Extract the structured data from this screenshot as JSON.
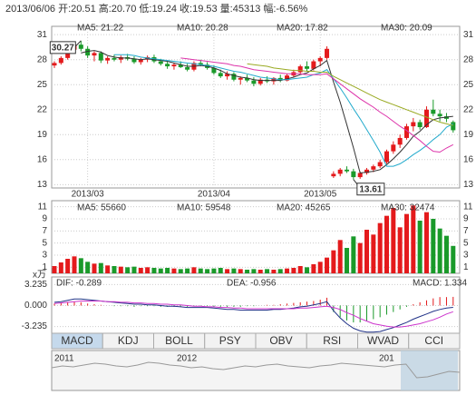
{
  "header": "2013/06/06 开:20.51 高:20.70 低:19.24 收:19.53 量:45313 幅:-6.56%",
  "chart_data": [
    {
      "type": "candlestick",
      "categories": [
        null,
        null,
        null,
        null,
        null,
        "2013/03",
        null,
        null,
        null,
        null,
        null,
        null,
        null,
        null,
        null,
        null,
        null,
        null,
        null,
        null,
        null,
        null,
        null,
        null,
        "2013/04",
        null,
        null,
        null,
        null,
        null,
        null,
        null,
        null,
        null,
        null,
        null,
        null,
        null,
        null,
        null,
        "2013/05",
        null,
        null,
        null,
        null,
        null,
        null,
        null,
        null,
        null,
        null,
        null,
        null,
        null,
        null,
        null,
        null,
        null,
        null,
        null,
        null
      ],
      "open": [
        27.3,
        27.6,
        28.2,
        29.2,
        29.8,
        29.3,
        28.5,
        28.8,
        27.9,
        28.2,
        28.0,
        28.3,
        28.1,
        27.7,
        28.0,
        28.3,
        27.8,
        27.5,
        27.2,
        27.4,
        27.1,
        26.8,
        27.6,
        27.4,
        27.0,
        26.4,
        26.0,
        26.3,
        25.6,
        25.8,
        25.5,
        25.1,
        25.6,
        25.4,
        25.8,
        25.5,
        26.1,
        26.5,
        27.2,
        26.9,
        27.8,
        28.2,
        14.0,
        14.3,
        14.8,
        14.6,
        13.9,
        14.4,
        14.8,
        15.2,
        15.7,
        17.0,
        17.8,
        18.6,
        20.0,
        20.5,
        19.9,
        22.0,
        21.5,
        21.2,
        20.51
      ],
      "high": [
        27.8,
        28.4,
        29.5,
        30.0,
        30.27,
        29.6,
        29.0,
        29.0,
        28.4,
        28.6,
        28.5,
        28.7,
        28.4,
        28.2,
        28.5,
        28.6,
        28.1,
        27.9,
        27.6,
        27.8,
        27.5,
        27.8,
        28.0,
        27.7,
        27.3,
        26.8,
        26.6,
        26.5,
        26.0,
        26.2,
        25.9,
        25.8,
        26.0,
        25.9,
        26.2,
        26.3,
        26.8,
        27.4,
        27.8,
        28.0,
        28.4,
        29.6,
        14.6,
        15.0,
        15.2,
        14.9,
        14.6,
        15.0,
        15.4,
        16.0,
        17.2,
        18.2,
        19.0,
        20.3,
        21.0,
        20.8,
        22.4,
        23.2,
        22.0,
        21.6,
        20.7
      ],
      "low": [
        27.0,
        27.4,
        28.0,
        28.8,
        29.0,
        28.2,
        27.8,
        27.6,
        27.5,
        27.8,
        27.6,
        27.9,
        27.5,
        27.4,
        27.7,
        27.6,
        27.3,
        26.9,
        26.8,
        27.0,
        26.6,
        26.6,
        27.2,
        26.8,
        26.2,
        25.8,
        25.6,
        25.4,
        25.0,
        25.3,
        24.8,
        24.9,
        25.2,
        25.0,
        25.3,
        25.4,
        25.9,
        26.3,
        26.6,
        26.7,
        27.2,
        28.0,
        13.8,
        14.0,
        14.4,
        13.61,
        13.7,
        14.2,
        14.5,
        15.0,
        15.5,
        16.7,
        17.4,
        18.4,
        19.4,
        19.6,
        19.8,
        21.2,
        20.6,
        20.5,
        19.24
      ],
      "close": [
        27.6,
        28.2,
        29.2,
        29.8,
        29.3,
        28.5,
        28.8,
        27.9,
        28.2,
        28.0,
        28.3,
        28.1,
        27.7,
        28.0,
        28.3,
        27.8,
        27.5,
        27.2,
        27.4,
        27.1,
        26.8,
        27.6,
        27.4,
        27.0,
        26.4,
        26.0,
        26.3,
        25.6,
        25.8,
        25.5,
        25.1,
        25.6,
        25.4,
        25.8,
        25.5,
        26.1,
        26.5,
        27.2,
        26.9,
        27.8,
        28.2,
        29.3,
        14.3,
        14.8,
        14.6,
        13.9,
        14.4,
        14.8,
        15.2,
        15.7,
        17.0,
        17.8,
        18.6,
        20.0,
        20.5,
        19.9,
        22.0,
        21.5,
        21.2,
        20.9,
        19.53
      ],
      "up_color": "#e41a1c",
      "down_color": "#1a9a2a",
      "series": [
        {
          "name": "MA5: 21.22",
          "color": "#333333",
          "values": [
            null,
            null,
            null,
            null,
            28.8,
            29.0,
            29.1,
            28.9,
            28.5,
            28.3,
            28.2,
            28.2,
            28.1,
            28.0,
            28.1,
            28.0,
            27.9,
            27.8,
            27.6,
            27.4,
            27.2,
            27.2,
            27.3,
            27.2,
            27.0,
            26.7,
            26.3,
            26.1,
            25.9,
            25.8,
            25.6,
            25.5,
            25.5,
            25.5,
            25.5,
            25.7,
            25.9,
            26.2,
            26.4,
            26.9,
            27.3,
            27.9,
            25.3,
            22.9,
            20.2,
            17.4,
            14.4,
            14.5,
            14.6,
            14.8,
            15.4,
            16.1,
            16.9,
            17.8,
            18.8,
            19.4,
            20.2,
            20.8,
            21.0,
            21.1,
            21.2
          ]
        },
        {
          "name": "MA10: 20.28",
          "color": "#22aacc",
          "values": [
            null,
            null,
            null,
            null,
            null,
            null,
            null,
            null,
            null,
            28.6,
            28.6,
            28.6,
            28.5,
            28.3,
            28.2,
            28.1,
            28.0,
            27.9,
            27.8,
            27.7,
            27.6,
            27.5,
            27.4,
            27.3,
            27.2,
            27.0,
            26.8,
            26.6,
            26.5,
            26.3,
            26.1,
            25.9,
            25.8,
            25.7,
            25.6,
            25.6,
            25.7,
            25.8,
            25.9,
            26.2,
            26.4,
            26.8,
            25.7,
            24.6,
            23.4,
            22.1,
            20.9,
            19.6,
            18.3,
            16.9,
            15.2,
            15.2,
            15.5,
            16.0,
            16.6,
            17.1,
            17.7,
            18.4,
            19.0,
            19.9,
            20.3
          ]
        },
        {
          "name": "MA20: 17.82",
          "color": "#dd33aa",
          "values": [
            null,
            null,
            null,
            null,
            null,
            null,
            null,
            null,
            null,
            null,
            null,
            null,
            null,
            null,
            null,
            null,
            null,
            null,
            null,
            28.2,
            28.1,
            28.0,
            27.9,
            27.8,
            27.7,
            27.6,
            27.5,
            27.3,
            27.2,
            27.0,
            26.8,
            26.7,
            26.6,
            26.5,
            26.4,
            26.3,
            26.3,
            26.3,
            26.2,
            26.2,
            26.2,
            26.3,
            25.7,
            25.1,
            24.5,
            23.9,
            23.3,
            22.8,
            22.3,
            21.7,
            21.2,
            20.6,
            20.0,
            19.5,
            18.9,
            18.3,
            17.6,
            17.0,
            16.9,
            17.4,
            17.8
          ]
        },
        {
          "name": "MA30: 20.09",
          "color": "#99aa22",
          "values": [
            null,
            null,
            null,
            null,
            null,
            null,
            null,
            null,
            null,
            null,
            null,
            null,
            null,
            null,
            null,
            null,
            null,
            null,
            null,
            null,
            null,
            null,
            null,
            null,
            null,
            null,
            null,
            null,
            null,
            27.5,
            27.4,
            27.3,
            27.2,
            27.0,
            26.9,
            26.8,
            26.7,
            26.7,
            26.6,
            26.6,
            26.5,
            26.5,
            26.0,
            25.6,
            25.2,
            24.8,
            24.4,
            24.0,
            23.6,
            23.2,
            22.9,
            22.6,
            22.3,
            22.0,
            21.7,
            21.4,
            21.1,
            20.8,
            20.5,
            20.3,
            20.1
          ]
        }
      ],
      "max_label": "30.27",
      "min_label": "13.61",
      "ylim": [
        12.6,
        32
      ],
      "yticks": [
        31,
        28,
        25,
        22,
        19,
        16,
        13
      ],
      "grid": true
    },
    {
      "type": "bar",
      "unit_label": "x万",
      "values": [
        1.2,
        1.8,
        2.4,
        2.8,
        2.5,
        1.9,
        1.6,
        1.7,
        1.3,
        1.2,
        1.1,
        1.0,
        1.1,
        0.9,
        1.0,
        0.9,
        0.8,
        0.9,
        0.8,
        0.7,
        0.8,
        1.0,
        0.8,
        0.7,
        0.8,
        0.9,
        0.7,
        0.8,
        0.7,
        0.6,
        0.7,
        0.6,
        0.7,
        0.6,
        0.7,
        0.8,
        0.9,
        1.2,
        1.0,
        1.5,
        1.9,
        2.6,
        3.8,
        5.5,
        4.2,
        6.1,
        5.0,
        7.2,
        6.4,
        8.3,
        9.5,
        10.8,
        7.6,
        9.8,
        11.2,
        8.7,
        10.1,
        9.0,
        7.4,
        6.2,
        4.53
      ],
      "legend": [
        {
          "text": "MA5: 55660",
          "color": "#333333"
        },
        {
          "text": "MA10: 59548",
          "color": "#22aacc"
        },
        {
          "text": "MA20: 45265",
          "color": "#dd33aa"
        },
        {
          "text": "MA30: 32474",
          "color": "#99aa22"
        }
      ],
      "ylim": [
        0,
        12
      ],
      "yticks": [
        1,
        3,
        5,
        7,
        9,
        11
      ],
      "grid": true
    },
    {
      "type": "macd",
      "series": [
        {
          "name": "DIF: -0.289",
          "color": "#223388",
          "values": [
            0.5,
            0.6,
            0.8,
            1.0,
            1.0,
            0.9,
            0.8,
            0.7,
            0.6,
            0.5,
            0.4,
            0.3,
            0.2,
            0.2,
            0.1,
            0.1,
            0.0,
            -0.1,
            -0.1,
            -0.2,
            -0.3,
            -0.3,
            -0.3,
            -0.3,
            -0.4,
            -0.5,
            -0.6,
            -0.6,
            -0.7,
            -0.7,
            -0.7,
            -0.7,
            -0.7,
            -0.6,
            -0.6,
            -0.5,
            -0.4,
            -0.2,
            -0.1,
            0.1,
            0.3,
            0.6,
            -0.8,
            -1.9,
            -2.8,
            -3.5,
            -3.9,
            -4.1,
            -4.1,
            -4.0,
            -3.7,
            -3.4,
            -3.0,
            -2.6,
            -2.1,
            -1.7,
            -1.3,
            -0.9,
            -0.6,
            -0.4,
            -0.289
          ]
        },
        {
          "name": "DEA: -0.956",
          "color": "#cc33cc",
          "values": [
            0.3,
            0.4,
            0.5,
            0.6,
            0.7,
            0.7,
            0.7,
            0.7,
            0.6,
            0.6,
            0.5,
            0.5,
            0.4,
            0.4,
            0.3,
            0.3,
            0.2,
            0.2,
            0.1,
            0.1,
            0.0,
            -0.1,
            -0.1,
            -0.2,
            -0.2,
            -0.3,
            -0.3,
            -0.4,
            -0.4,
            -0.5,
            -0.5,
            -0.5,
            -0.5,
            -0.5,
            -0.5,
            -0.5,
            -0.5,
            -0.4,
            -0.4,
            -0.3,
            -0.2,
            -0.1,
            -0.3,
            -0.6,
            -1.1,
            -1.5,
            -2.0,
            -2.4,
            -2.8,
            -3.0,
            -3.2,
            -3.3,
            -3.3,
            -3.2,
            -3.0,
            -2.8,
            -2.5,
            -2.2,
            -1.8,
            -1.3,
            -0.956
          ]
        },
        {
          "name": "MACD: 1.334",
          "color": "#e41a1c",
          "negative_color": "#1a9a2a",
          "values": [
            0.3,
            0.4,
            0.5,
            0.6,
            0.5,
            0.3,
            0.2,
            0.1,
            0.0,
            -0.1,
            -0.1,
            -0.1,
            -0.2,
            -0.1,
            -0.1,
            -0.1,
            -0.2,
            -0.2,
            -0.2,
            -0.2,
            -0.2,
            -0.1,
            -0.1,
            -0.1,
            -0.2,
            -0.2,
            -0.2,
            -0.2,
            -0.2,
            -0.1,
            -0.1,
            0.0,
            0.1,
            0.1,
            0.2,
            0.3,
            0.4,
            0.5,
            0.6,
            0.7,
            0.9,
            1.2,
            -1.0,
            -1.8,
            -2.3,
            -2.6,
            -2.6,
            -2.4,
            -2.1,
            -1.8,
            -1.4,
            -1.0,
            -0.6,
            -0.2,
            0.2,
            0.5,
            0.8,
            1.1,
            1.3,
            1.3,
            1.334
          ]
        }
      ],
      "ylim": [
        -4.27,
        4.4
      ],
      "yticks": [
        3.235,
        {
          "value": 0,
          "label": "0.000"
        },
        -3.235
      ]
    }
  ],
  "tabs": [
    "MACD",
    "KDJ",
    "BOLL",
    "PSY",
    "OBV",
    "RSI",
    "WVAD",
    "CCI"
  ],
  "selected_tab": "MACD",
  "navigator": {
    "years": [
      "2011",
      "2012",
      "201"
    ],
    "ylim": [
      0,
      40
    ],
    "values": [
      25,
      27,
      26,
      28,
      30,
      29,
      27,
      26,
      28,
      31,
      30,
      28,
      27,
      25,
      26,
      24,
      23,
      25,
      27,
      26,
      28,
      29,
      27,
      26,
      25,
      27,
      28,
      30,
      29,
      28,
      27,
      26,
      28,
      29,
      14,
      15,
      18,
      21,
      20
    ]
  }
}
